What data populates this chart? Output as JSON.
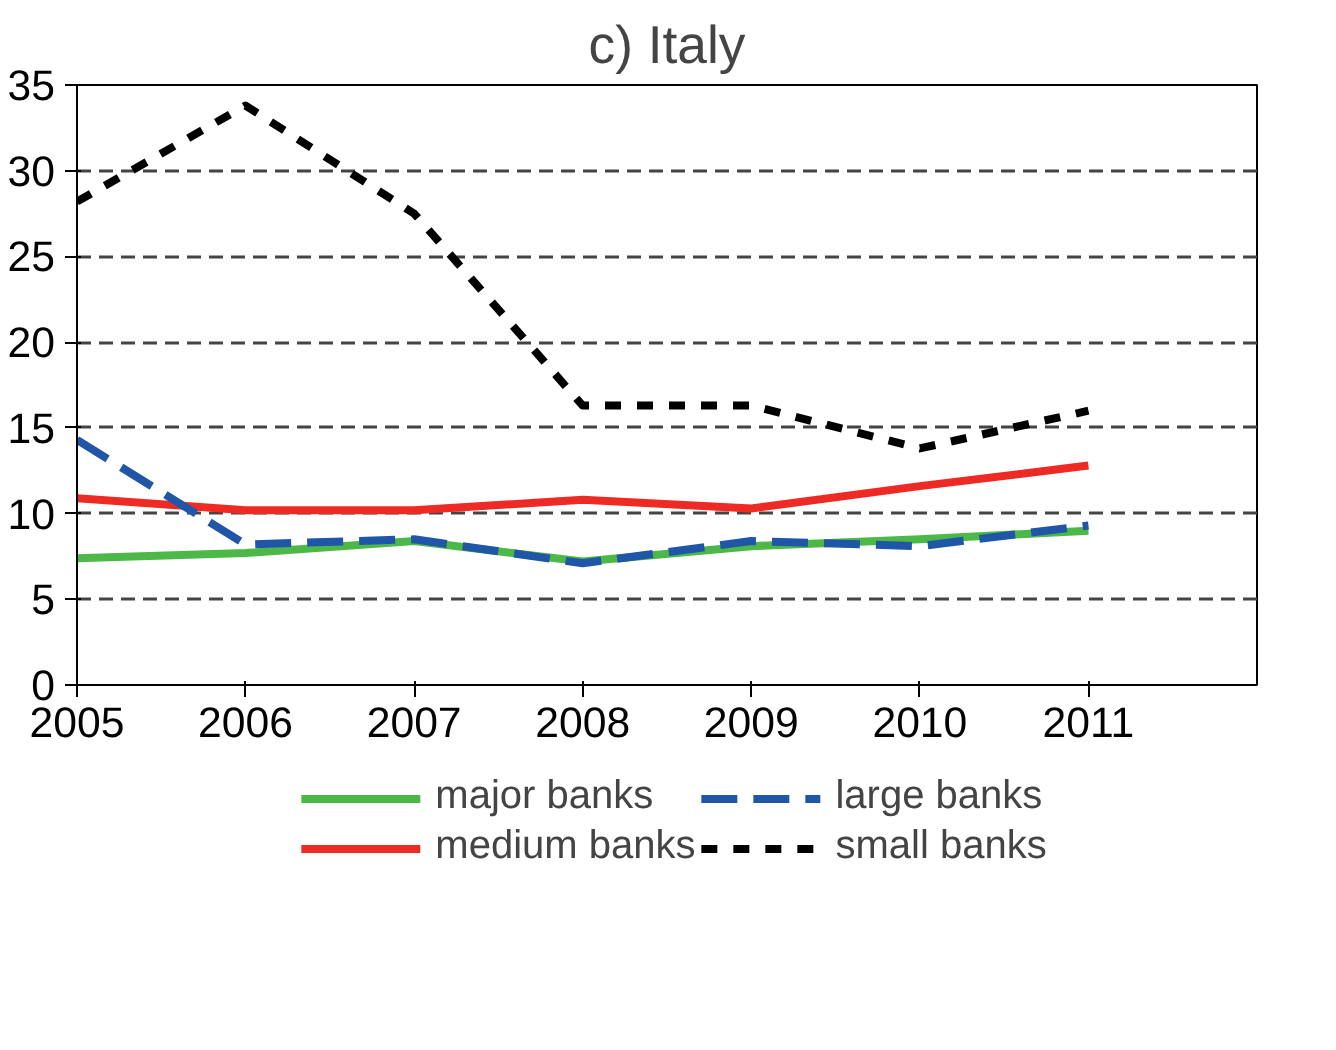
{
  "chart_data": {
    "type": "line",
    "title": "c) Italy",
    "x": [
      2005,
      2006,
      2007,
      2008,
      2009,
      2010,
      2011
    ],
    "xlim": [
      2005,
      2012
    ],
    "xticks": [
      2005,
      2006,
      2007,
      2008,
      2009,
      2010,
      2011
    ],
    "ylim": [
      0,
      35
    ],
    "yticks": [
      0,
      5,
      10,
      15,
      20,
      25,
      30,
      35
    ],
    "grid": "y",
    "legend": "bottom",
    "series": [
      {
        "name": "major banks",
        "color": "#4cb848",
        "line_style": "solid",
        "values": [
          7.4,
          7.7,
          8.4,
          7.2,
          8.1,
          8.5,
          9.0
        ]
      },
      {
        "name": "medium banks",
        "color": "#ee2a24",
        "line_style": "solid",
        "values": [
          10.9,
          10.2,
          10.2,
          10.8,
          10.3,
          11.6,
          12.8
        ]
      },
      {
        "name": "large banks",
        "color": "#1f56a8",
        "line_style": "dashed",
        "values": [
          14.3,
          8.2,
          8.5,
          7.1,
          8.4,
          8.1,
          9.3
        ]
      },
      {
        "name": "small banks",
        "color": "#000000",
        "line_style": "dotted",
        "values": [
          28.2,
          33.8,
          27.5,
          16.3,
          16.3,
          13.8,
          16.0
        ]
      }
    ]
  }
}
